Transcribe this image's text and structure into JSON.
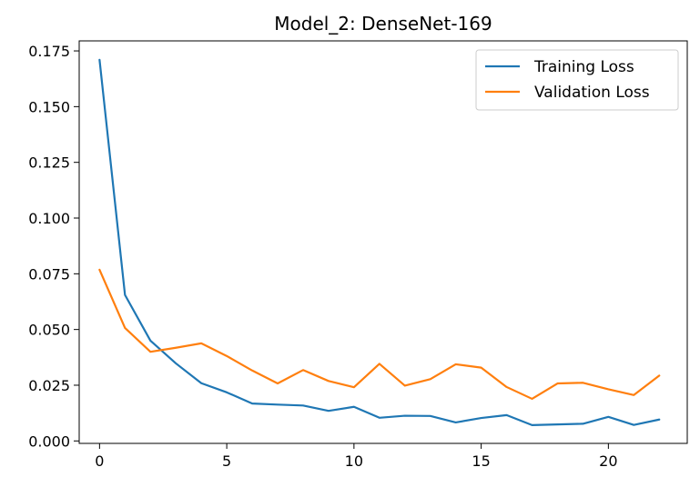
{
  "chart_data": {
    "type": "line",
    "title": "Model_2: DenseNet-169",
    "xlabel": "",
    "ylabel": "",
    "xlim": [
      -0.8,
      23.1
    ],
    "ylim": [
      -0.0011,
      0.1795
    ],
    "xticks": [
      0,
      5,
      10,
      15,
      20
    ],
    "xtick_labels": [
      "0",
      "5",
      "10",
      "15",
      "20"
    ],
    "yticks": [
      0.0,
      0.025,
      0.05,
      0.075,
      0.1,
      0.125,
      0.15,
      0.175
    ],
    "ytick_labels": [
      "0.000",
      "0.025",
      "0.050",
      "0.075",
      "0.100",
      "0.125",
      "0.150",
      "0.175"
    ],
    "grid": false,
    "legend_position": "top-right",
    "x": [
      0,
      1,
      2,
      3,
      4,
      5,
      6,
      7,
      8,
      9,
      10,
      11,
      12,
      13,
      14,
      15,
      16,
      17,
      18,
      19,
      20,
      21,
      22
    ],
    "series": [
      {
        "name": "Training Loss",
        "color": "#1f77b4",
        "values": [
          0.171,
          0.0655,
          0.045,
          0.0348,
          0.0259,
          0.0218,
          0.0168,
          0.0163,
          0.0159,
          0.0135,
          0.0153,
          0.0104,
          0.0113,
          0.0112,
          0.0083,
          0.0103,
          0.0116,
          0.0071,
          0.0074,
          0.0077,
          0.0108,
          0.0072,
          0.0096
        ]
      },
      {
        "name": "Validation Loss",
        "color": "#ff7f0e",
        "values": [
          0.0768,
          0.0507,
          0.04,
          0.0418,
          0.0438,
          0.0381,
          0.0316,
          0.0258,
          0.0318,
          0.0269,
          0.0241,
          0.0346,
          0.0248,
          0.0277,
          0.0344,
          0.0329,
          0.0242,
          0.0189,
          0.0258,
          0.0261,
          0.0232,
          0.0206,
          0.0293
        ]
      }
    ]
  }
}
